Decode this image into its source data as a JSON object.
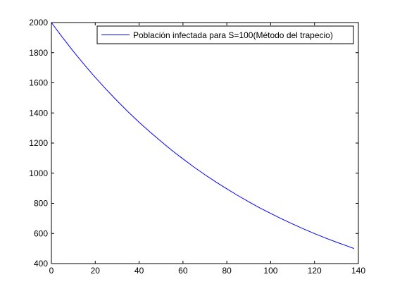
{
  "chart_data": {
    "type": "line",
    "title": "",
    "xlabel": "",
    "ylabel": "",
    "xlim": [
      0,
      140
    ],
    "ylim": [
      400,
      2000
    ],
    "xticks": [
      0,
      20,
      40,
      60,
      80,
      100,
      120,
      140
    ],
    "yticks": [
      400,
      600,
      800,
      1000,
      1200,
      1400,
      1600,
      1800,
      2000
    ],
    "grid": false,
    "legend": {
      "position": "top-right"
    },
    "series": [
      {
        "name": "Población infectada para S=100(Método del trapecio)",
        "color": "#0000ff",
        "x": [
          0,
          5,
          10,
          15,
          20,
          25,
          30,
          35,
          40,
          45,
          50,
          55,
          60,
          65,
          70,
          75,
          80,
          85,
          90,
          95,
          100,
          105,
          110,
          115,
          120,
          125,
          130,
          135,
          138
        ],
        "y": [
          2000,
          1902,
          1809,
          1720,
          1636,
          1556,
          1480,
          1407,
          1338,
          1273,
          1211,
          1151,
          1095,
          1041,
          990,
          942,
          896,
          852,
          810,
          770,
          733,
          697,
          663,
          630,
          599,
          570,
          542,
          516,
          500
        ]
      }
    ]
  }
}
